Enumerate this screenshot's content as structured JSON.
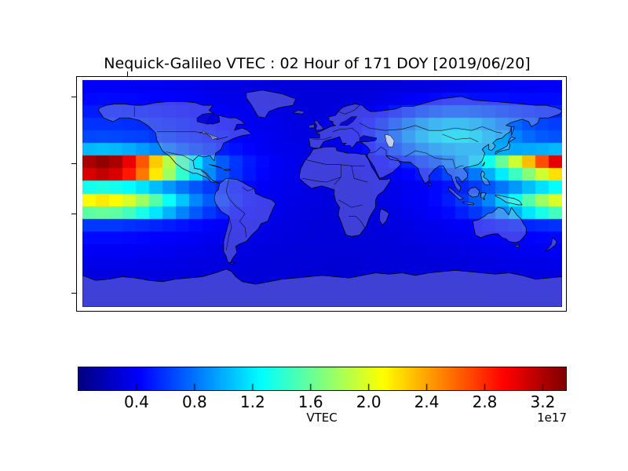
{
  "figure": {
    "title": "Nequick-Galileo VTEC : 02 Hour of 171 DOY [2019/06/20]",
    "background": "#ffffff"
  },
  "chart_data": {
    "type": "heatmap",
    "title": "Nequick-Galileo VTEC : 02 Hour of 171 DOY [2019/06/20]",
    "projection": "equirectangular world map, lon -180..180, lat -90..90",
    "colormap": "jet",
    "vmin": 0,
    "vmax": 3.36,
    "colorbar": {
      "label": "VTEC",
      "orientation": "horizontal",
      "ticks": [
        0.4,
        0.8,
        1.2,
        1.6,
        2.0,
        2.4,
        2.8,
        3.2
      ],
      "tick_labels": [
        "0.4",
        "0.8",
        "1.2",
        "1.6",
        "2.0",
        "2.4",
        "2.8",
        "3.2"
      ],
      "multiplier": "1e17"
    },
    "grid": {
      "lon_start": -175,
      "lon_step": 10,
      "nlon": 36,
      "lat_start": 85,
      "lat_step": -10,
      "nlat": 18,
      "values_1e17": [
        [
          0.39,
          0.39,
          0.39,
          0.39,
          0.38,
          0.38,
          0.37,
          0.36,
          0.35,
          0.34,
          0.33,
          0.33,
          0.32,
          0.31,
          0.3,
          0.3,
          0.3,
          0.29,
          0.29,
          0.29,
          0.29,
          0.29,
          0.3,
          0.3,
          0.31,
          0.31,
          0.32,
          0.33,
          0.34,
          0.35,
          0.36,
          0.37,
          0.38,
          0.38,
          0.39,
          0.39
        ],
        [
          0.44,
          0.45,
          0.44,
          0.44,
          0.43,
          0.42,
          0.41,
          0.4,
          0.39,
          0.37,
          0.36,
          0.35,
          0.34,
          0.33,
          0.32,
          0.31,
          0.3,
          0.3,
          0.3,
          0.3,
          0.31,
          0.32,
          0.34,
          0.36,
          0.39,
          0.42,
          0.44,
          0.47,
          0.48,
          0.46,
          0.46,
          0.46,
          0.45,
          0.45,
          0.45,
          0.45
        ],
        [
          0.51,
          0.51,
          0.51,
          0.5,
          0.49,
          0.48,
          0.46,
          0.45,
          0.43,
          0.41,
          0.39,
          0.37,
          0.36,
          0.34,
          0.33,
          0.32,
          0.31,
          0.3,
          0.31,
          0.32,
          0.34,
          0.38,
          0.43,
          0.5,
          0.56,
          0.63,
          0.68,
          0.71,
          0.71,
          0.69,
          0.66,
          0.62,
          0.59,
          0.56,
          0.54,
          0.53
        ],
        [
          0.58,
          0.58,
          0.58,
          0.57,
          0.56,
          0.54,
          0.52,
          0.5,
          0.47,
          0.45,
          0.42,
          0.4,
          0.38,
          0.36,
          0.35,
          0.33,
          0.32,
          0.31,
          0.33,
          0.35,
          0.39,
          0.46,
          0.55,
          0.67,
          0.79,
          0.91,
          0.99,
          1.04,
          1.04,
          0.99,
          0.92,
          0.83,
          0.76,
          0.69,
          0.65,
          0.62
        ],
        [
          0.65,
          0.66,
          0.65,
          0.64,
          0.63,
          0.6,
          0.58,
          0.55,
          0.52,
          0.49,
          0.46,
          0.43,
          0.4,
          0.38,
          0.36,
          0.34,
          0.33,
          0.32,
          0.34,
          0.36,
          0.41,
          0.49,
          0.6,
          0.73,
          0.88,
          1.01,
          1.12,
          1.17,
          1.17,
          1.12,
          1.03,
          0.94,
          0.85,
          0.77,
          0.72,
          0.69
        ],
        [
          1.03,
          1.05,
          1.03,
          0.99,
          0.93,
          0.86,
          0.78,
          0.7,
          0.63,
          0.57,
          0.51,
          0.47,
          0.43,
          0.39,
          0.37,
          0.35,
          0.34,
          0.32,
          0.33,
          0.34,
          0.39,
          0.45,
          0.53,
          0.63,
          0.74,
          0.84,
          0.92,
          0.97,
          1.01,
          1.01,
          0.99,
          0.98,
          0.97,
          0.98,
          1.0,
          1.03
        ],
        [
          3.22,
          3.3,
          3.22,
          3.0,
          2.66,
          2.27,
          1.86,
          1.48,
          1.17,
          0.91,
          0.72,
          0.59,
          0.5,
          0.44,
          0.4,
          0.37,
          0.34,
          0.33,
          0.33,
          0.32,
          0.35,
          0.38,
          0.42,
          0.48,
          0.54,
          0.61,
          0.68,
          0.81,
          0.94,
          1.1,
          1.32,
          1.6,
          1.94,
          2.32,
          2.69,
          3.02
        ],
        [
          3.06,
          3.14,
          3.06,
          2.86,
          2.54,
          2.17,
          1.78,
          1.42,
          1.13,
          0.88,
          0.7,
          0.58,
          0.49,
          0.43,
          0.39,
          0.36,
          0.34,
          0.32,
          0.31,
          0.31,
          0.32,
          0.34,
          0.36,
          0.39,
          0.43,
          0.49,
          0.55,
          0.65,
          0.7,
          0.82,
          1.0,
          1.2,
          1.45,
          1.7,
          1.95,
          2.2
        ],
        [
          1.32,
          1.35,
          1.32,
          1.26,
          1.17,
          1.04,
          0.92,
          0.8,
          0.7,
          0.61,
          0.54,
          0.48,
          0.44,
          0.4,
          0.37,
          0.35,
          0.34,
          0.32,
          0.31,
          0.3,
          0.31,
          0.32,
          0.34,
          0.35,
          0.38,
          0.4,
          0.44,
          0.48,
          0.54,
          0.61,
          0.7,
          0.81,
          0.92,
          1.05,
          1.16,
          1.26
        ],
        [
          2.11,
          2.17,
          2.11,
          1.98,
          1.78,
          1.54,
          1.29,
          1.07,
          0.86,
          0.72,
          0.6,
          0.51,
          0.44,
          0.4,
          0.37,
          0.34,
          0.33,
          0.32,
          0.31,
          0.3,
          0.31,
          0.32,
          0.33,
          0.35,
          0.38,
          0.4,
          0.44,
          0.51,
          0.6,
          0.72,
          0.86,
          1.07,
          1.29,
          1.54,
          1.78,
          1.98
        ],
        [
          1.57,
          1.6,
          1.57,
          1.48,
          1.34,
          1.18,
          1.01,
          0.85,
          0.71,
          0.6,
          0.52,
          0.45,
          0.41,
          0.37,
          0.35,
          0.33,
          0.32,
          0.31,
          0.3,
          0.3,
          0.3,
          0.31,
          0.32,
          0.33,
          0.35,
          0.38,
          0.41,
          0.45,
          0.52,
          0.6,
          0.71,
          0.85,
          1.01,
          1.18,
          1.34,
          1.48
        ],
        [
          0.6,
          0.6,
          0.6,
          0.58,
          0.56,
          0.54,
          0.51,
          0.48,
          0.45,
          0.42,
          0.4,
          0.38,
          0.36,
          0.34,
          0.33,
          0.32,
          0.31,
          0.3,
          0.3,
          0.29,
          0.3,
          0.3,
          0.31,
          0.32,
          0.33,
          0.35,
          0.36,
          0.38,
          0.4,
          0.42,
          0.45,
          0.48,
          0.51,
          0.54,
          0.56,
          0.58
        ],
        [
          0.45,
          0.45,
          0.45,
          0.44,
          0.43,
          0.42,
          0.41,
          0.4,
          0.39,
          0.37,
          0.36,
          0.35,
          0.34,
          0.33,
          0.32,
          0.31,
          0.3,
          0.3,
          0.29,
          0.29,
          0.29,
          0.3,
          0.3,
          0.31,
          0.32,
          0.33,
          0.34,
          0.35,
          0.36,
          0.37,
          0.39,
          0.4,
          0.41,
          0.42,
          0.43,
          0.44
        ],
        [
          0.39,
          0.39,
          0.39,
          0.39,
          0.38,
          0.38,
          0.37,
          0.36,
          0.35,
          0.34,
          0.33,
          0.32,
          0.32,
          0.31,
          0.3,
          0.3,
          0.29,
          0.29,
          0.29,
          0.29,
          0.29,
          0.29,
          0.29,
          0.3,
          0.3,
          0.31,
          0.32,
          0.32,
          0.33,
          0.34,
          0.35,
          0.36,
          0.37,
          0.38,
          0.38,
          0.39
        ],
        [
          0.35,
          0.35,
          0.35,
          0.35,
          0.34,
          0.34,
          0.34,
          0.33,
          0.32,
          0.32,
          0.31,
          0.31,
          0.3,
          0.3,
          0.29,
          0.29,
          0.29,
          0.29,
          0.28,
          0.28,
          0.28,
          0.29,
          0.29,
          0.29,
          0.3,
          0.3,
          0.3,
          0.31,
          0.31,
          0.32,
          0.32,
          0.33,
          0.34,
          0.34,
          0.34,
          0.35
        ],
        [
          0.32,
          0.32,
          0.32,
          0.32,
          0.32,
          0.32,
          0.31,
          0.31,
          0.31,
          0.3,
          0.3,
          0.3,
          0.29,
          0.29,
          0.29,
          0.29,
          0.28,
          0.28,
          0.28,
          0.28,
          0.28,
          0.28,
          0.28,
          0.29,
          0.29,
          0.29,
          0.29,
          0.3,
          0.3,
          0.3,
          0.31,
          0.31,
          0.31,
          0.32,
          0.32,
          0.32
        ],
        [
          0.3,
          0.3,
          0.3,
          0.3,
          0.3,
          0.3,
          0.3,
          0.29,
          0.29,
          0.29,
          0.29,
          0.29,
          0.29,
          0.29,
          0.28,
          0.28,
          0.28,
          0.28,
          0.28,
          0.28,
          0.28,
          0.28,
          0.28,
          0.28,
          0.29,
          0.29,
          0.29,
          0.29,
          0.29,
          0.29,
          0.29,
          0.3,
          0.3,
          0.3,
          0.3,
          0.3
        ],
        [
          0.29,
          0.29,
          0.29,
          0.29,
          0.29,
          0.29,
          0.29,
          0.29,
          0.29,
          0.28,
          0.28,
          0.28,
          0.28,
          0.28,
          0.28,
          0.28,
          0.28,
          0.28,
          0.28,
          0.28,
          0.28,
          0.28,
          0.28,
          0.28,
          0.28,
          0.28,
          0.28,
          0.28,
          0.28,
          0.28,
          0.29,
          0.29,
          0.29,
          0.29,
          0.29,
          0.29
        ]
      ]
    }
  }
}
